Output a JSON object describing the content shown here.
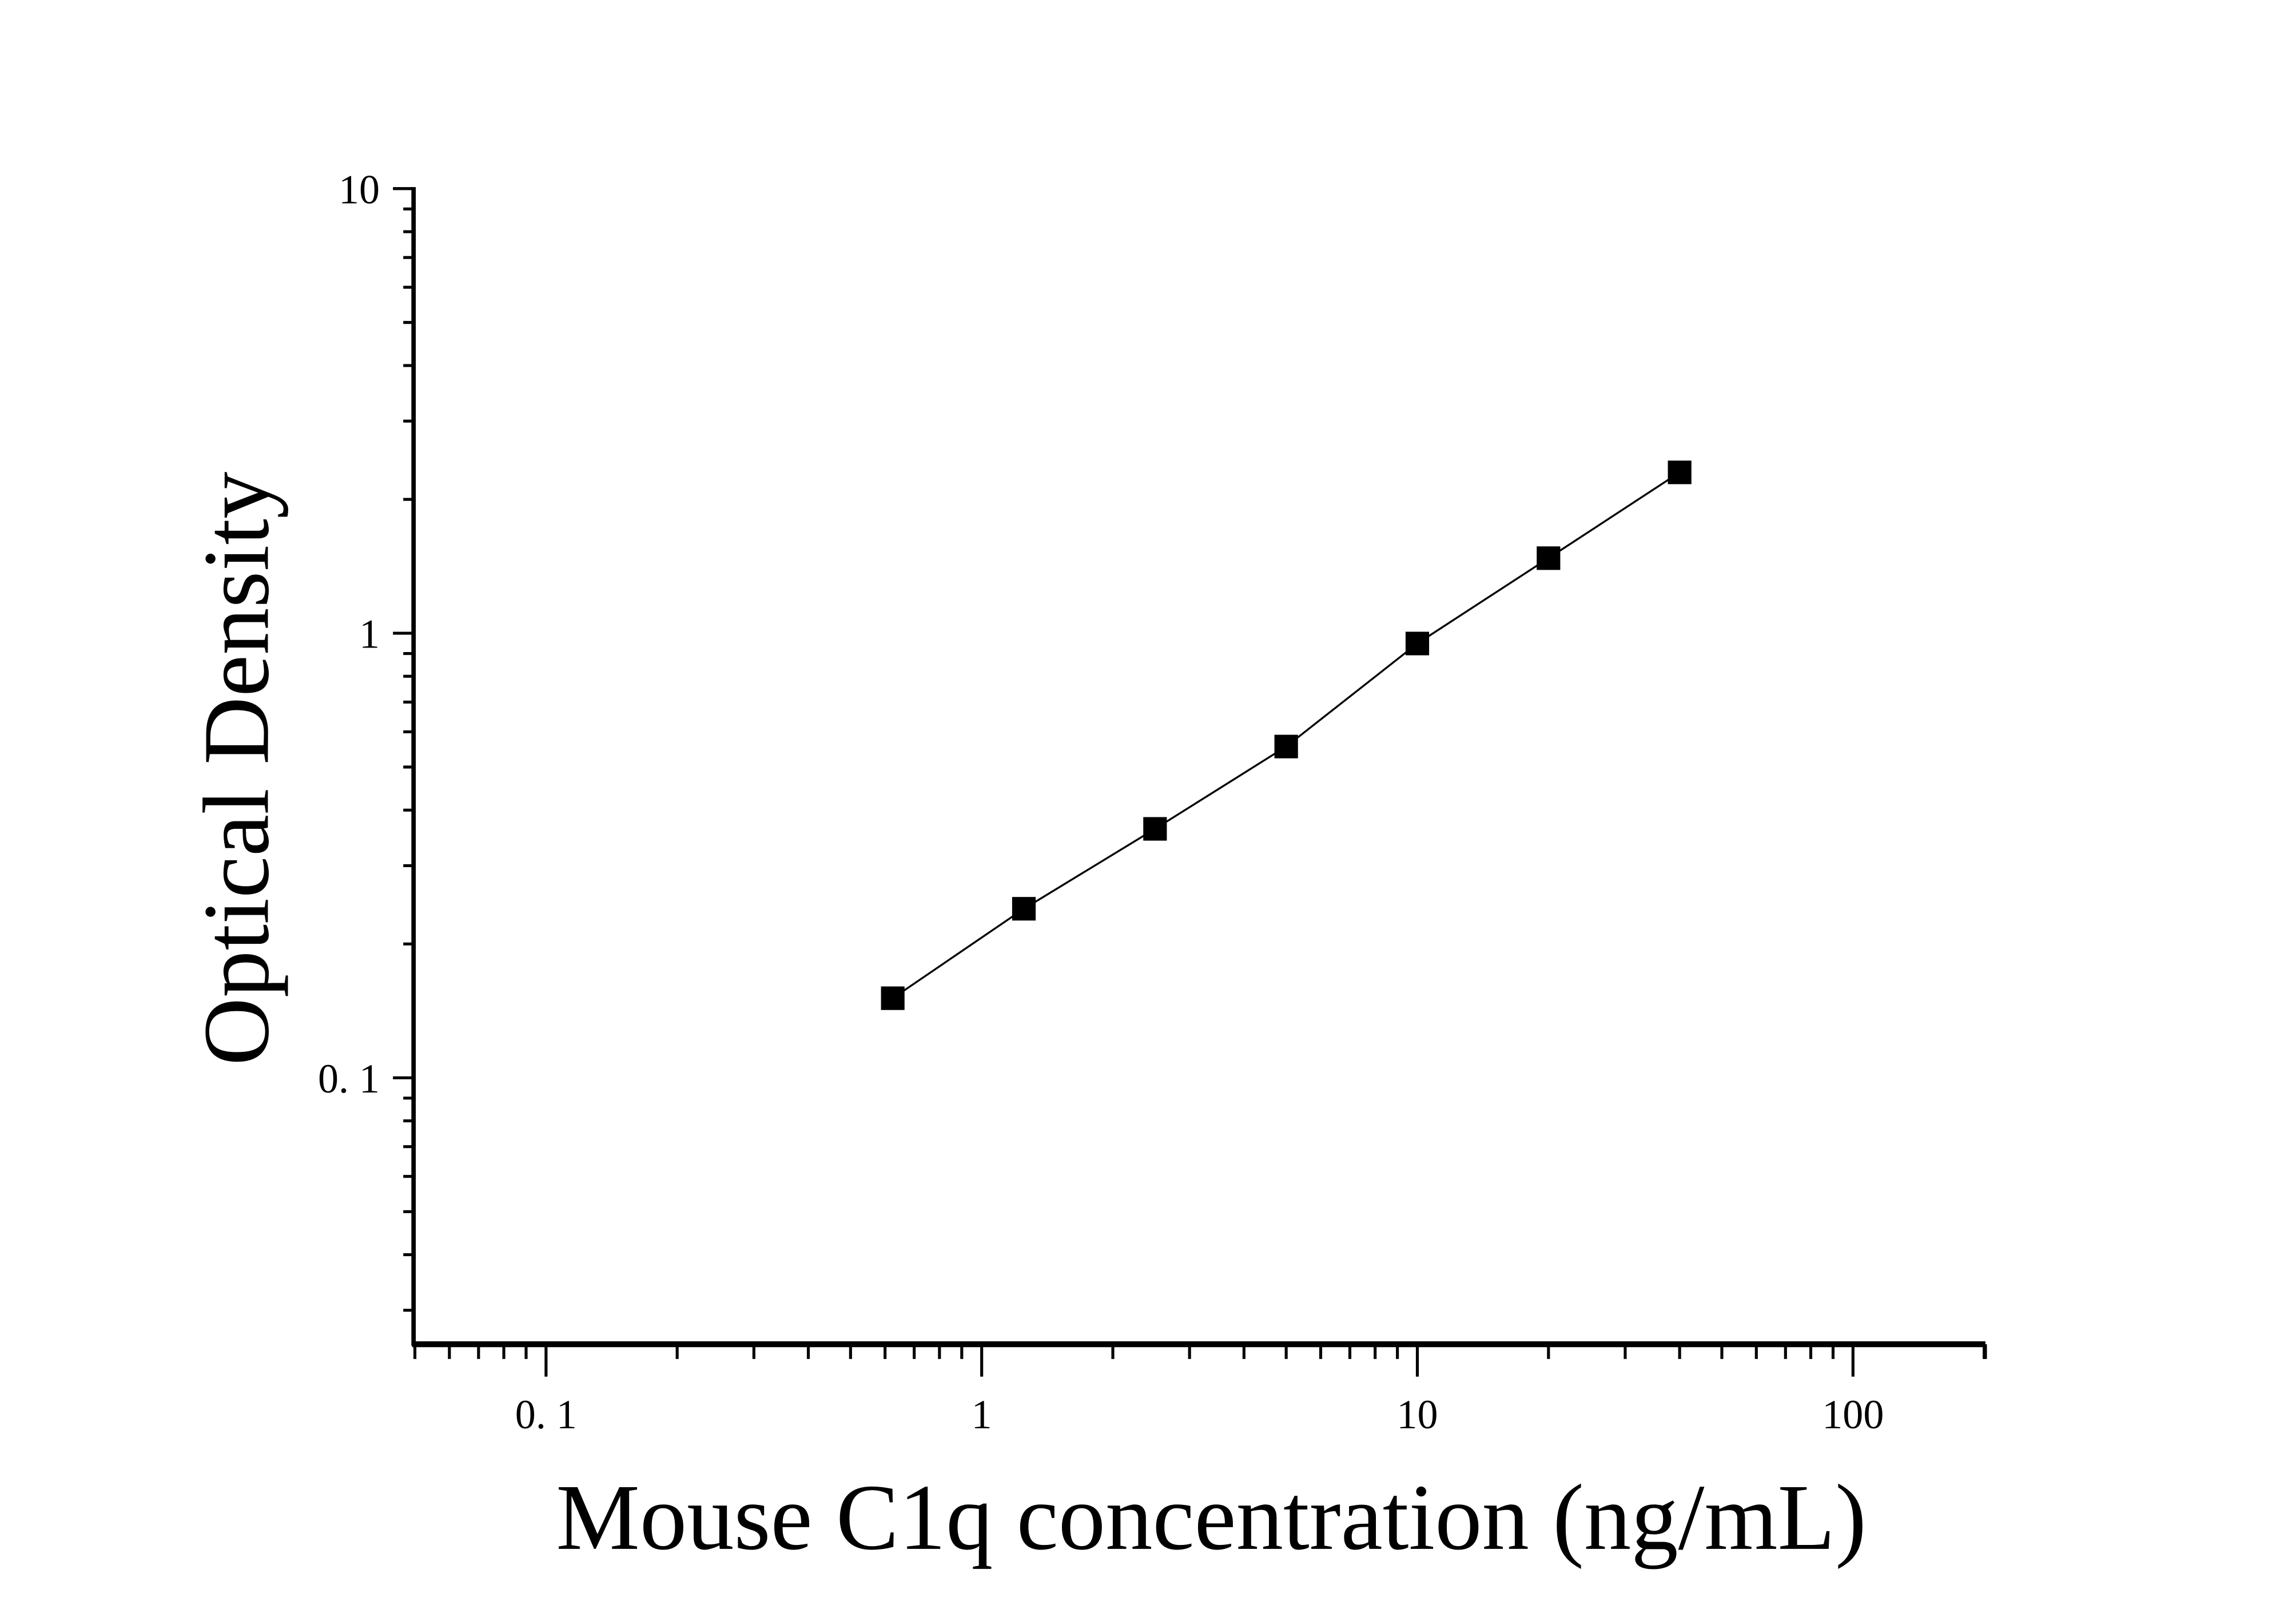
{
  "chart_data": {
    "type": "scatter",
    "title": "",
    "xlabel": "Mouse C1q concentration (ng/mL)",
    "ylabel": "Optical Density",
    "x_scale": "log",
    "y_scale": "log",
    "xlim": [
      0.05,
      200
    ],
    "ylim": [
      0.025,
      10
    ],
    "x_ticks": [
      {
        "value": 0.1,
        "label": "0. 1"
      },
      {
        "value": 1,
        "label": "1"
      },
      {
        "value": 10,
        "label": "10"
      },
      {
        "value": 100,
        "label": "100"
      }
    ],
    "y_ticks": [
      {
        "value": 0.1,
        "label": "0. 1"
      },
      {
        "value": 1,
        "label": "1"
      },
      {
        "value": 10,
        "label": "10"
      }
    ],
    "grid": false,
    "marker": "square",
    "color": "#000000",
    "fit_line": true,
    "x": [
      0.625,
      1.25,
      2.5,
      5,
      10,
      20,
      40
    ],
    "y": [
      0.151,
      0.24,
      0.363,
      0.556,
      0.948,
      1.475,
      2.3
    ]
  }
}
